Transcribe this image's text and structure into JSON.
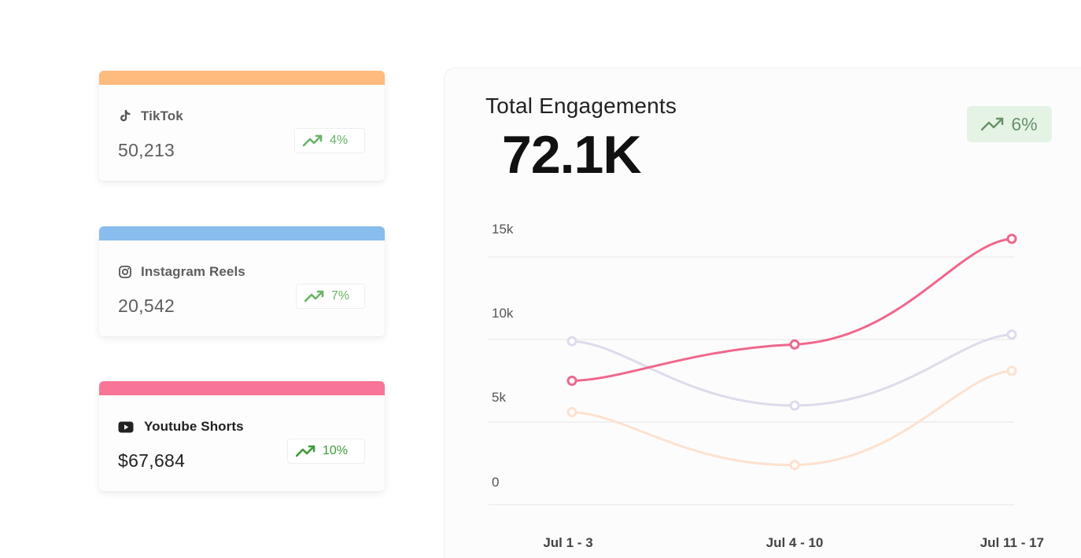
{
  "cards": [
    {
      "name": "TikTok",
      "value": "50,213",
      "change": "4%",
      "accent": "#ffbb7d",
      "icon": "tiktok-icon"
    },
    {
      "name": "Instagram Reels",
      "value": "20,542",
      "change": "7%",
      "accent": "#88bdee",
      "icon": "instagram-icon"
    },
    {
      "name": "Youtube Shorts",
      "value": "$67,684",
      "change": "10%",
      "accent": "#f97597",
      "icon": "youtube-icon"
    }
  ],
  "panel": {
    "title": "Total Engagements",
    "total": "72.1K",
    "change": "6%",
    "change_bg": "#e4f3e4",
    "trend_icon": "trending-up-icon"
  },
  "chart_data": {
    "type": "line",
    "categories": [
      "Jul 1 - 3",
      "Jul 4 - 10",
      "Jul 11 - 17"
    ],
    "yticks": [
      "15k",
      "10k",
      "5k",
      "0"
    ],
    "ylim": [
      0,
      15000
    ],
    "series": [
      {
        "name": "Youtube Shorts",
        "color": "#f0678c",
        "opacity": 1,
        "values": [
          7500,
          9700,
          16100
        ]
      },
      {
        "name": "Instagram Reels",
        "color": "#dcdcec",
        "opacity": 1,
        "values": [
          9900,
          6000,
          10300
        ]
      },
      {
        "name": "TikTok",
        "color": "#fde1cf",
        "opacity": 1,
        "values": [
          5600,
          2400,
          8100
        ]
      }
    ]
  }
}
